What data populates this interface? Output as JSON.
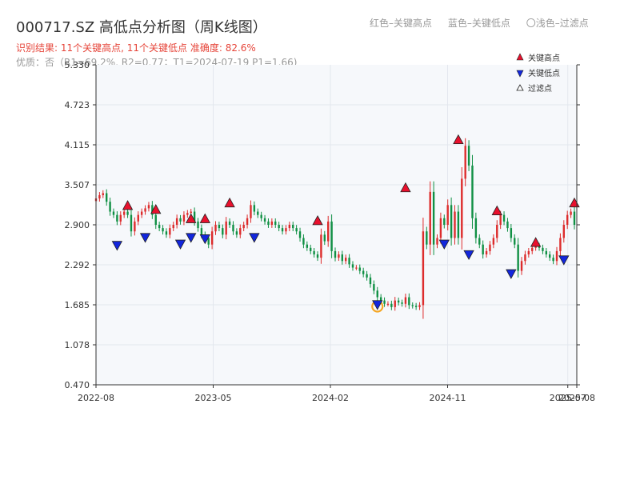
{
  "header": {
    "title": "000717.SZ 高低点分析图（周K线图）",
    "legend_red": "红色–关键高点",
    "legend_blue": "蓝色–关键低点",
    "legend_light": "〇浅色–过滤点",
    "result": "识别结果: 11个关键高点, 11个关键低点   准确度: 82.6%",
    "quality": "优质：否（R1=69.2%, R2=0.77；T1=2024-07-19 P1=1.66)"
  },
  "chart_data": {
    "type": "candlestick",
    "title": "000717.SZ 高低点分析图（周K线图）",
    "ylim": [
      0.47,
      5.33
    ],
    "yticks": [
      "0.470",
      "1.078",
      "1.685",
      "2.292",
      "2.900",
      "3.507",
      "4.115",
      "4.723",
      "5.330"
    ],
    "xticks": [
      {
        "label": "2022-08",
        "t": 0
      },
      {
        "label": "2023-05",
        "t": 39
      },
      {
        "label": "2024-02",
        "t": 78
      },
      {
        "label": "2024-11",
        "t": 117
      },
      {
        "label": "2025-07",
        "t": 157
      },
      {
        "label": "2025-08",
        "t": 160
      }
    ],
    "closes": [
      3.3,
      3.35,
      3.38,
      3.25,
      3.1,
      3.05,
      2.95,
      3.05,
      3.1,
      3.05,
      2.8,
      2.95,
      3.05,
      3.1,
      3.15,
      3.2,
      3.05,
      2.9,
      2.85,
      2.8,
      2.75,
      2.85,
      2.9,
      3.0,
      2.95,
      3.05,
      3.08,
      3.1,
      2.95,
      2.85,
      2.75,
      2.7,
      2.6,
      2.8,
      2.9,
      2.85,
      2.75,
      2.95,
      2.9,
      2.8,
      2.75,
      2.85,
      2.9,
      3.0,
      3.2,
      3.1,
      3.05,
      3.0,
      2.95,
      2.9,
      2.95,
      2.9,
      2.85,
      2.8,
      2.85,
      2.9,
      2.85,
      2.8,
      2.7,
      2.6,
      2.55,
      2.5,
      2.45,
      2.4,
      2.75,
      2.65,
      2.95,
      2.5,
      2.4,
      2.45,
      2.35,
      2.4,
      2.3,
      2.25,
      2.25,
      2.2,
      2.15,
      2.1,
      2.0,
      1.9,
      1.8,
      1.75,
      1.7,
      1.7,
      1.65,
      1.75,
      1.72,
      1.7,
      1.8,
      1.68,
      1.67,
      1.65,
      1.68,
      2.8,
      2.6,
      3.4,
      2.6,
      2.7,
      3.0,
      2.9,
      3.2,
      2.7,
      3.1,
      2.7,
      3.6,
      4.1,
      3.8,
      3.0,
      2.7,
      2.6,
      2.45,
      2.5,
      2.6,
      2.7,
      2.9,
      3.05,
      2.95,
      2.85,
      2.7,
      2.6,
      2.2,
      2.35,
      2.45,
      2.5,
      2.55,
      2.58,
      2.55,
      2.5,
      2.45,
      2.4,
      2.35,
      2.5,
      2.7,
      2.9,
      3.05,
      3.1,
      2.9
    ],
    "key_highs": [
      {
        "t": 9,
        "price": 3.18
      },
      {
        "t": 17,
        "price": 3.12
      },
      {
        "t": 27,
        "price": 2.98
      },
      {
        "t": 31,
        "price": 2.98
      },
      {
        "t": 38,
        "price": 3.22
      },
      {
        "t": 63,
        "price": 2.95
      },
      {
        "t": 88,
        "price": 3.45
      },
      {
        "t": 103,
        "price": 4.18
      },
      {
        "t": 114,
        "price": 3.1
      },
      {
        "t": 125,
        "price": 2.62
      },
      {
        "t": 136,
        "price": 3.22
      }
    ],
    "key_lows": [
      {
        "t": 6,
        "price": 2.6
      },
      {
        "t": 14,
        "price": 2.72
      },
      {
        "t": 24,
        "price": 2.62
      },
      {
        "t": 27,
        "price": 2.72
      },
      {
        "t": 31,
        "price": 2.7
      },
      {
        "t": 45,
        "price": 2.72
      },
      {
        "t": 80,
        "price": 1.7
      },
      {
        "t": 99,
        "price": 2.62
      },
      {
        "t": 106,
        "price": 2.46
      },
      {
        "t": 118,
        "price": 2.17
      },
      {
        "t": 133,
        "price": 2.38
      }
    ],
    "filtered_points": [
      {
        "t": 80,
        "price": 1.66
      }
    ],
    "legend": [
      {
        "label": "关键高点",
        "symbol": "up-triangle",
        "color": "#e8102d"
      },
      {
        "label": "关键低点",
        "symbol": "down-triangle",
        "color": "#1226dd"
      },
      {
        "label": "过滤点",
        "symbol": "up-triangle-outline",
        "color": "#ffffff"
      }
    ],
    "legend_position": "top-right",
    "grid": true
  },
  "colors": {
    "up": "#dd2c2c",
    "down": "#109044",
    "high_marker": "#e8102d",
    "low_marker": "#1226dd",
    "filtered_ring": "#f5a623",
    "plot_bg": "#f6f8fb",
    "axis": "#333333",
    "grid": "#e3e7ee"
  }
}
